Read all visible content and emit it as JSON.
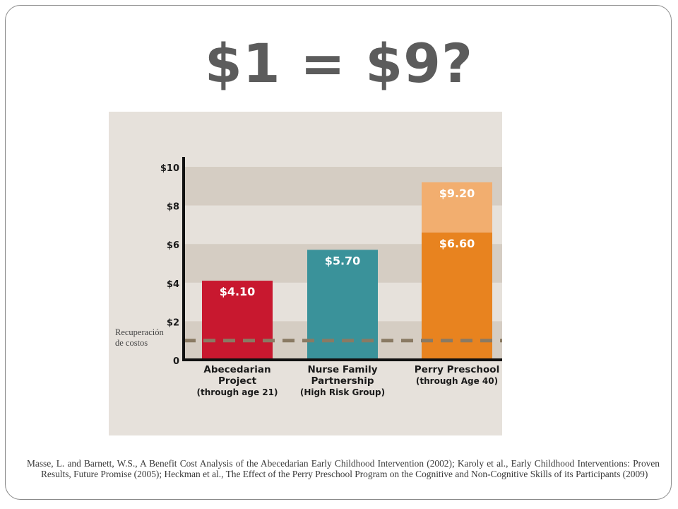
{
  "slide": {
    "title": "$1 = $9?",
    "citation": "Masse, L. and Barnett, W.S., A Benefit Cost Analysis of  the Abecedarian Early Childhood Intervention (2002); Karoly et al., Early Childhood Interventions: Proven Results, Future Promise (2005); Heckman et al., The Effect of the Perry Preschool Program on the Cognitive and Non-Cognitive Skills of its Participants (2009)"
  },
  "colors": {
    "band_light": "#e6e1db",
    "band_dark": "#d5cdc3",
    "axis": "#111111",
    "abecedarian": "#c8182f",
    "nurse": "#3a929a",
    "perry_base": "#e8831f",
    "perry_top": "#f2ae6f",
    "cost_line": "#8a7a63"
  },
  "chart_data": {
    "type": "bar",
    "title": "",
    "xlabel": "",
    "ylabel": "",
    "ylim": [
      0,
      10
    ],
    "y_ticks": [
      "0",
      "$2",
      "$4",
      "$6",
      "$8",
      "$10"
    ],
    "y_tick_values": [
      0,
      2,
      4,
      6,
      8,
      10
    ],
    "grid": "alternating horizontal bands",
    "categories": [
      {
        "line1": "Abecedarian",
        "line2": "Project",
        "line3": "(through age 21)"
      },
      {
        "line1": "Nurse Family",
        "line2": "Partnership",
        "line3": "(High Risk Group)"
      },
      {
        "line1": "Perry Preschool",
        "line2": "(through Age 40)",
        "line3": ""
      }
    ],
    "bars": [
      {
        "value": 4.1,
        "label": "$4.10",
        "color_key": "abecedarian"
      },
      {
        "value": 5.7,
        "label": "$5.70",
        "color_key": "nurse"
      },
      {
        "value": 6.6,
        "label": "$6.60",
        "color_key": "perry_base",
        "upper_value": 9.2,
        "upper_label": "$9.20",
        "upper_color_key": "perry_top"
      }
    ],
    "reference_line": {
      "value": 1,
      "label_line1": "Recuperación",
      "label_line2": "de costos"
    }
  }
}
